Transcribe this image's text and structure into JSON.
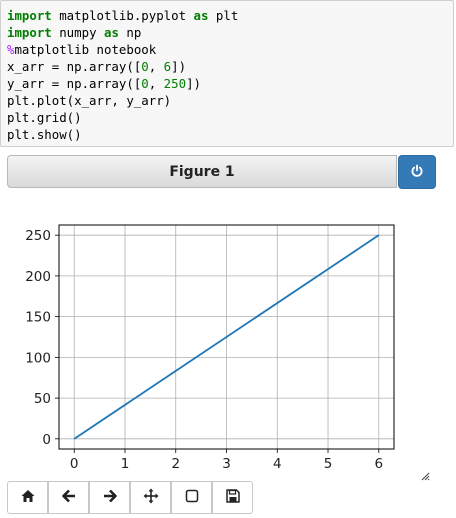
{
  "code": {
    "line1": {
      "kw1": "import",
      "mid": " matplotlib.pyplot ",
      "kw2": "as",
      "end": " plt"
    },
    "line2": {
      "kw1": "import",
      "mid": " numpy ",
      "kw2": "as",
      "end": " np"
    },
    "line3": {
      "pct": "%",
      "rest": "matplotlib notebook"
    },
    "line4": {
      "pre": "x_arr = np.array([",
      "n1": "0",
      "sep": ", ",
      "n2": "6",
      "post": "])"
    },
    "line5": {
      "pre": "y_arr = np.array([",
      "n1": "0",
      "sep": ", ",
      "n2": "250",
      "post": "])"
    },
    "line6": "plt.plot(x_arr, y_arr)",
    "line7": "plt.grid()",
    "line8": "plt.show()"
  },
  "figure": {
    "title": "Figure 1",
    "power_icon": "power-icon"
  },
  "chart_data": {
    "type": "line",
    "title": "",
    "xlabel": "",
    "ylabel": "",
    "x": [
      0,
      6
    ],
    "series": [
      {
        "values": [
          0,
          250
        ],
        "color": "#1f77b4"
      }
    ],
    "xlim": [
      -0.3,
      6.3
    ],
    "ylim": [
      -12.5,
      262.5
    ],
    "xticks": [
      "0",
      "1",
      "2",
      "3",
      "4",
      "5",
      "6"
    ],
    "yticks": [
      "0",
      "50",
      "100",
      "150",
      "200",
      "250"
    ],
    "grid": true
  },
  "toolbar": {
    "buttons": [
      "home-icon",
      "back-arrow-icon",
      "forward-arrow-icon",
      "pan-move-icon",
      "zoom-rect-icon",
      "save-icon"
    ]
  }
}
